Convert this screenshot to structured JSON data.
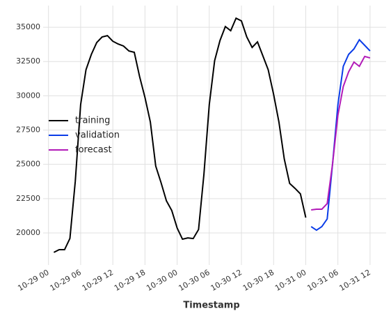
{
  "chart_data": {
    "type": "line",
    "xlabel": "Timestamp",
    "x": [
      "10-29 01",
      "10-29 02",
      "10-29 03",
      "10-29 04",
      "10-29 05",
      "10-29 06",
      "10-29 07",
      "10-29 08",
      "10-29 09",
      "10-29 10",
      "10-29 11",
      "10-29 12",
      "10-29 13",
      "10-29 14",
      "10-29 15",
      "10-29 16",
      "10-29 17",
      "10-29 18",
      "10-29 19",
      "10-29 20",
      "10-29 21",
      "10-29 22",
      "10-29 23",
      "10-30 00",
      "10-30 01",
      "10-30 02",
      "10-30 03",
      "10-30 04",
      "10-30 05",
      "10-30 06",
      "10-30 07",
      "10-30 08",
      "10-30 09",
      "10-30 10",
      "10-30 11",
      "10-30 12",
      "10-30 13",
      "10-30 14",
      "10-30 15",
      "10-30 16",
      "10-30 17",
      "10-30 18",
      "10-30 19",
      "10-30 20",
      "10-30 21",
      "10-30 22",
      "10-30 23",
      "10-31 00",
      "10-31 01",
      "10-31 02",
      "10-31 03",
      "10-31 04",
      "10-31 05",
      "10-31 06",
      "10-31 07",
      "10-31 08",
      "10-31 09",
      "10-31 10",
      "10-31 11",
      "10-31 12"
    ],
    "series": [
      {
        "name": "training",
        "color": "#000000",
        "values": [
          18580,
          18780,
          18780,
          19600,
          23760,
          29360,
          31900,
          33020,
          33880,
          34290,
          34390,
          33980,
          33780,
          33630,
          33270,
          33170,
          31390,
          29870,
          28090,
          24880,
          23660,
          22340,
          21630,
          20360,
          19540,
          19640,
          19590,
          20250,
          24270,
          29360,
          32560,
          34030,
          35050,
          34750,
          35660,
          35460,
          34290,
          33530,
          33930,
          32920,
          31900,
          30120,
          28090,
          25390,
          23610,
          23250,
          22850,
          21120,
          null,
          null,
          null,
          null,
          null,
          null,
          null,
          null,
          null,
          null,
          null,
          null
        ]
      },
      {
        "name": "validation",
        "color": "#0a3ce8",
        "values": [
          null,
          null,
          null,
          null,
          null,
          null,
          null,
          null,
          null,
          null,
          null,
          null,
          null,
          null,
          null,
          null,
          null,
          null,
          null,
          null,
          null,
          null,
          null,
          null,
          null,
          null,
          null,
          null,
          null,
          null,
          null,
          null,
          null,
          null,
          null,
          null,
          null,
          null,
          null,
          null,
          null,
          null,
          null,
          null,
          null,
          null,
          null,
          null,
          20460,
          20200,
          20460,
          21020,
          25030,
          29360,
          32150,
          33020,
          33420,
          34090,
          33680,
          33270
        ]
      },
      {
        "name": "forecast",
        "color": "#b21ab8",
        "values": [
          null,
          null,
          null,
          null,
          null,
          null,
          null,
          null,
          null,
          null,
          null,
          null,
          null,
          null,
          null,
          null,
          null,
          null,
          null,
          null,
          null,
          null,
          null,
          null,
          null,
          null,
          null,
          null,
          null,
          null,
          null,
          null,
          null,
          null,
          null,
          null,
          null,
          null,
          null,
          null,
          null,
          null,
          null,
          null,
          null,
          null,
          null,
          null,
          21680,
          21730,
          21730,
          22140,
          25030,
          28590,
          30680,
          31750,
          32460,
          32150,
          32870,
          32760
        ]
      }
    ],
    "xlim": [
      "10-28 23",
      "10-31 15"
    ],
    "xticks": [
      "10-29 00",
      "10-29 06",
      "10-29 12",
      "10-29 18",
      "10-30 00",
      "10-30 06",
      "10-30 12",
      "10-30 18",
      "10-31 00",
      "10-31 06",
      "10-31 12"
    ],
    "ylim": [
      17660,
      36580
    ],
    "yticks": [
      20000,
      22500,
      25000,
      27500,
      30000,
      32500,
      35000
    ],
    "grid": true,
    "legend": "center left"
  }
}
